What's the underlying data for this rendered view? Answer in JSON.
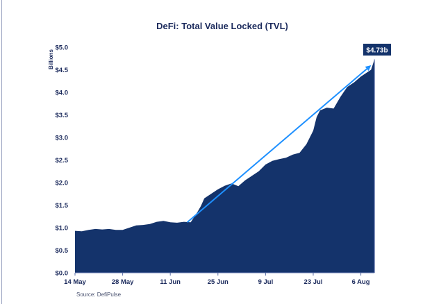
{
  "chart_data": {
    "type": "area",
    "title": "DeFi: Total Value Locked (TVL)",
    "ylabel": "Billions",
    "xlabel": "",
    "source": "Source: DefiPulse",
    "ylim": [
      0,
      5
    ],
    "yticks": [
      "$0.0",
      "$0.5",
      "$1.0",
      "$1.5",
      "$2.0",
      "$2.5",
      "$3.0",
      "$3.5",
      "$4.0",
      "$4.5",
      "$5.0"
    ],
    "xticks": [
      {
        "date": "05-14",
        "label": "14 May"
      },
      {
        "date": "05-28",
        "label": "28 May"
      },
      {
        "date": "06-11",
        "label": "11 Jun"
      },
      {
        "date": "06-25",
        "label": "25 Jun"
      },
      {
        "date": "07-09",
        "label": "9 Jul"
      },
      {
        "date": "07-23",
        "label": "23 Jul"
      },
      {
        "date": "08-06",
        "label": "6 Aug"
      }
    ],
    "grid": false,
    "series": [
      {
        "color": "#14336b",
        "points": [
          [
            "05-14",
            0.93
          ],
          [
            "05-16",
            0.92
          ],
          [
            "05-18",
            0.95
          ],
          [
            "05-20",
            0.97
          ],
          [
            "05-22",
            0.96
          ],
          [
            "05-24",
            0.97
          ],
          [
            "05-26",
            0.95
          ],
          [
            "05-28",
            0.95
          ],
          [
            "05-30",
            1.0
          ],
          [
            "06-01",
            1.05
          ],
          [
            "06-03",
            1.06
          ],
          [
            "06-05",
            1.08
          ],
          [
            "06-07",
            1.13
          ],
          [
            "06-09",
            1.15
          ],
          [
            "06-11",
            1.12
          ],
          [
            "06-13",
            1.11
          ],
          [
            "06-15",
            1.13
          ],
          [
            "06-17",
            1.12
          ],
          [
            "06-19",
            1.35
          ],
          [
            "06-20",
            1.48
          ],
          [
            "06-21",
            1.65
          ],
          [
            "06-23",
            1.75
          ],
          [
            "06-25",
            1.85
          ],
          [
            "06-27",
            1.93
          ],
          [
            "06-29",
            1.98
          ],
          [
            "07-01",
            1.92
          ],
          [
            "07-03",
            2.05
          ],
          [
            "07-05",
            2.15
          ],
          [
            "07-07",
            2.25
          ],
          [
            "07-09",
            2.4
          ],
          [
            "07-11",
            2.48
          ],
          [
            "07-13",
            2.52
          ],
          [
            "07-15",
            2.55
          ],
          [
            "07-17",
            2.62
          ],
          [
            "07-19",
            2.66
          ],
          [
            "07-21",
            2.85
          ],
          [
            "07-23",
            3.15
          ],
          [
            "07-24",
            3.45
          ],
          [
            "07-25",
            3.6
          ],
          [
            "07-27",
            3.66
          ],
          [
            "07-29",
            3.64
          ],
          [
            "07-31",
            3.9
          ],
          [
            "08-02",
            4.12
          ],
          [
            "08-04",
            4.22
          ],
          [
            "08-06",
            4.35
          ],
          [
            "08-08",
            4.45
          ],
          [
            "08-09",
            4.5
          ],
          [
            "08-10",
            4.73
          ]
        ]
      }
    ],
    "trend_arrow": {
      "from": [
        "06-16",
        1.12
      ],
      "to": [
        "08-09",
        4.6
      ],
      "color": "#1e90ff"
    },
    "callout": {
      "label": "$4.73b",
      "value": 4.73,
      "color": "#14336b"
    }
  }
}
